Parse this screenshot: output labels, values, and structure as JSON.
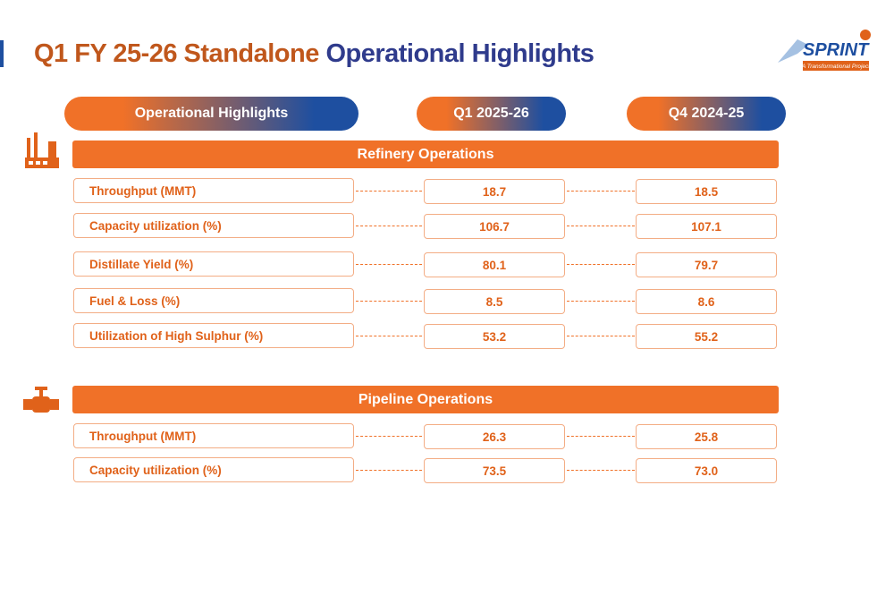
{
  "header": {
    "title_parts": [
      "Q1 FY 25-26 Standalone",
      "Operational Highlights"
    ],
    "logo": {
      "name": "SPRINT",
      "tagline": "A Transformational Project"
    }
  },
  "columns": [
    "Operational Highlights",
    "Q1 2025-26",
    "Q4 2024-25"
  ],
  "sections": [
    {
      "title": "Refinery Operations",
      "rows": [
        [
          "Throughput (MMT)",
          "18.7",
          "18.5"
        ],
        [
          "Capacity utilization (%)",
          "106.7",
          "107.1"
        ],
        [
          "Distillate Yield (%)",
          "80.1",
          "79.7"
        ],
        [
          "Fuel & Loss (%)",
          "8.5",
          "8.6"
        ],
        [
          "Utilization of High Sulphur (%)",
          "53.2",
          "55.2"
        ]
      ]
    },
    {
      "title": "Pipeline Operations",
      "rows": [
        [
          "Throughput (MMT)",
          "26.3",
          "25.8"
        ],
        [
          "Capacity utilization (%)",
          "73.5",
          "73.0"
        ]
      ]
    }
  ]
}
